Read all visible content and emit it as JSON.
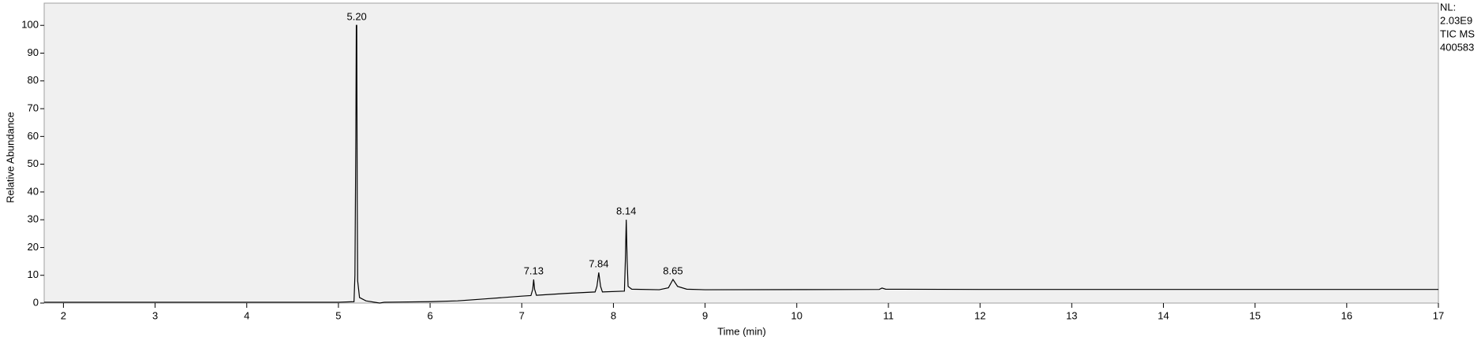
{
  "chart_data": {
    "type": "line",
    "x_label": "Time (min)",
    "y_label": "Relative Abundance",
    "info": [
      "NL:",
      "2.03E9",
      "TIC  MS",
      "400583"
    ],
    "xlim": [
      1.79,
      17
    ],
    "ylim": [
      0,
      108
    ],
    "xticks": [
      2,
      3,
      4,
      5,
      6,
      7,
      8,
      9,
      10,
      11,
      12,
      13,
      14,
      15,
      16,
      17
    ],
    "yticks": [
      0,
      10,
      20,
      30,
      40,
      50,
      60,
      70,
      80,
      90,
      100
    ],
    "series": [
      {
        "color": "#000000",
        "x": [
          1.79,
          5.0,
          5.17,
          5.18,
          5.19,
          5.195,
          5.2,
          5.205,
          5.21,
          5.23,
          5.3,
          5.45,
          5.5,
          6.0,
          6.3,
          6.6,
          7.0,
          7.1,
          7.12,
          7.13,
          7.14,
          7.16,
          7.5,
          7.8,
          7.82,
          7.84,
          7.86,
          7.88,
          8.12,
          8.13,
          8.14,
          8.15,
          8.16,
          8.2,
          8.5,
          8.6,
          8.65,
          8.7,
          8.8,
          9.0,
          10.9,
          10.93,
          10.97,
          12.0,
          17.0
        ],
        "values": [
          0.3,
          0.3,
          0.5,
          10,
          60,
          100,
          100,
          37,
          8,
          2,
          0.8,
          0,
          0.3,
          0.5,
          0.8,
          1.5,
          2.5,
          2.7,
          5,
          8.5,
          5,
          2.8,
          3.5,
          4,
          6,
          11,
          6,
          4,
          4.3,
          15,
          30,
          15,
          6,
          5,
          4.8,
          5.5,
          8.5,
          6,
          5,
          4.8,
          4.9,
          5.4,
          5,
          4.9,
          4.9
        ]
      }
    ],
    "peaks": [
      {
        "x": 5.2,
        "y": 100,
        "label": "5.20"
      },
      {
        "x": 7.13,
        "y": 8.5,
        "label": "7.13"
      },
      {
        "x": 7.84,
        "y": 11,
        "label": "7.84"
      },
      {
        "x": 8.14,
        "y": 30,
        "label": "8.14"
      },
      {
        "x": 8.65,
        "y": 8.5,
        "label": "8.65"
      }
    ]
  }
}
